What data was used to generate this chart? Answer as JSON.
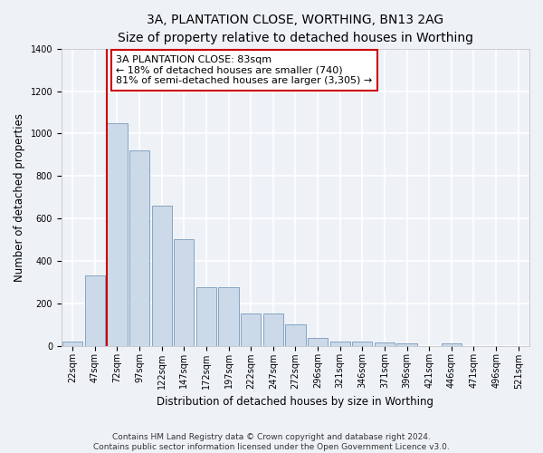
{
  "title": "3A, PLANTATION CLOSE, WORTHING, BN13 2AG",
  "subtitle": "Size of property relative to detached houses in Worthing",
  "xlabel": "Distribution of detached houses by size in Worthing",
  "ylabel": "Number of detached properties",
  "categories": [
    "22sqm",
    "47sqm",
    "72sqm",
    "97sqm",
    "122sqm",
    "147sqm",
    "172sqm",
    "197sqm",
    "222sqm",
    "247sqm",
    "272sqm",
    "296sqm",
    "321sqm",
    "346sqm",
    "371sqm",
    "396sqm",
    "421sqm",
    "446sqm",
    "471sqm",
    "496sqm",
    "521sqm"
  ],
  "values": [
    20,
    330,
    1050,
    920,
    660,
    500,
    275,
    275,
    150,
    150,
    100,
    35,
    20,
    20,
    15,
    10,
    0,
    10,
    0,
    0,
    0
  ],
  "bar_color": "#ccd9e8",
  "bar_edge_color": "#7799bb",
  "red_line_bar_index": 2,
  "annotation_text": "3A PLANTATION CLOSE: 83sqm\n← 18% of detached houses are smaller (740)\n81% of semi-detached houses are larger (3,305) →",
  "annotation_box_facecolor": "#ffffff",
  "annotation_box_edgecolor": "#cc0000",
  "red_line_color": "#cc0000",
  "ylim": [
    0,
    1400
  ],
  "yticks": [
    0,
    200,
    400,
    600,
    800,
    1000,
    1200,
    1400
  ],
  "footer_line1": "Contains HM Land Registry data © Crown copyright and database right 2024.",
  "footer_line2": "Contains public sector information licensed under the Open Government Licence v3.0.",
  "background_color": "#eef2f7",
  "grid_color": "#ffffff",
  "title_fontsize": 10,
  "axis_label_fontsize": 8.5,
  "tick_fontsize": 7,
  "annotation_fontsize": 8,
  "footer_fontsize": 6.5
}
